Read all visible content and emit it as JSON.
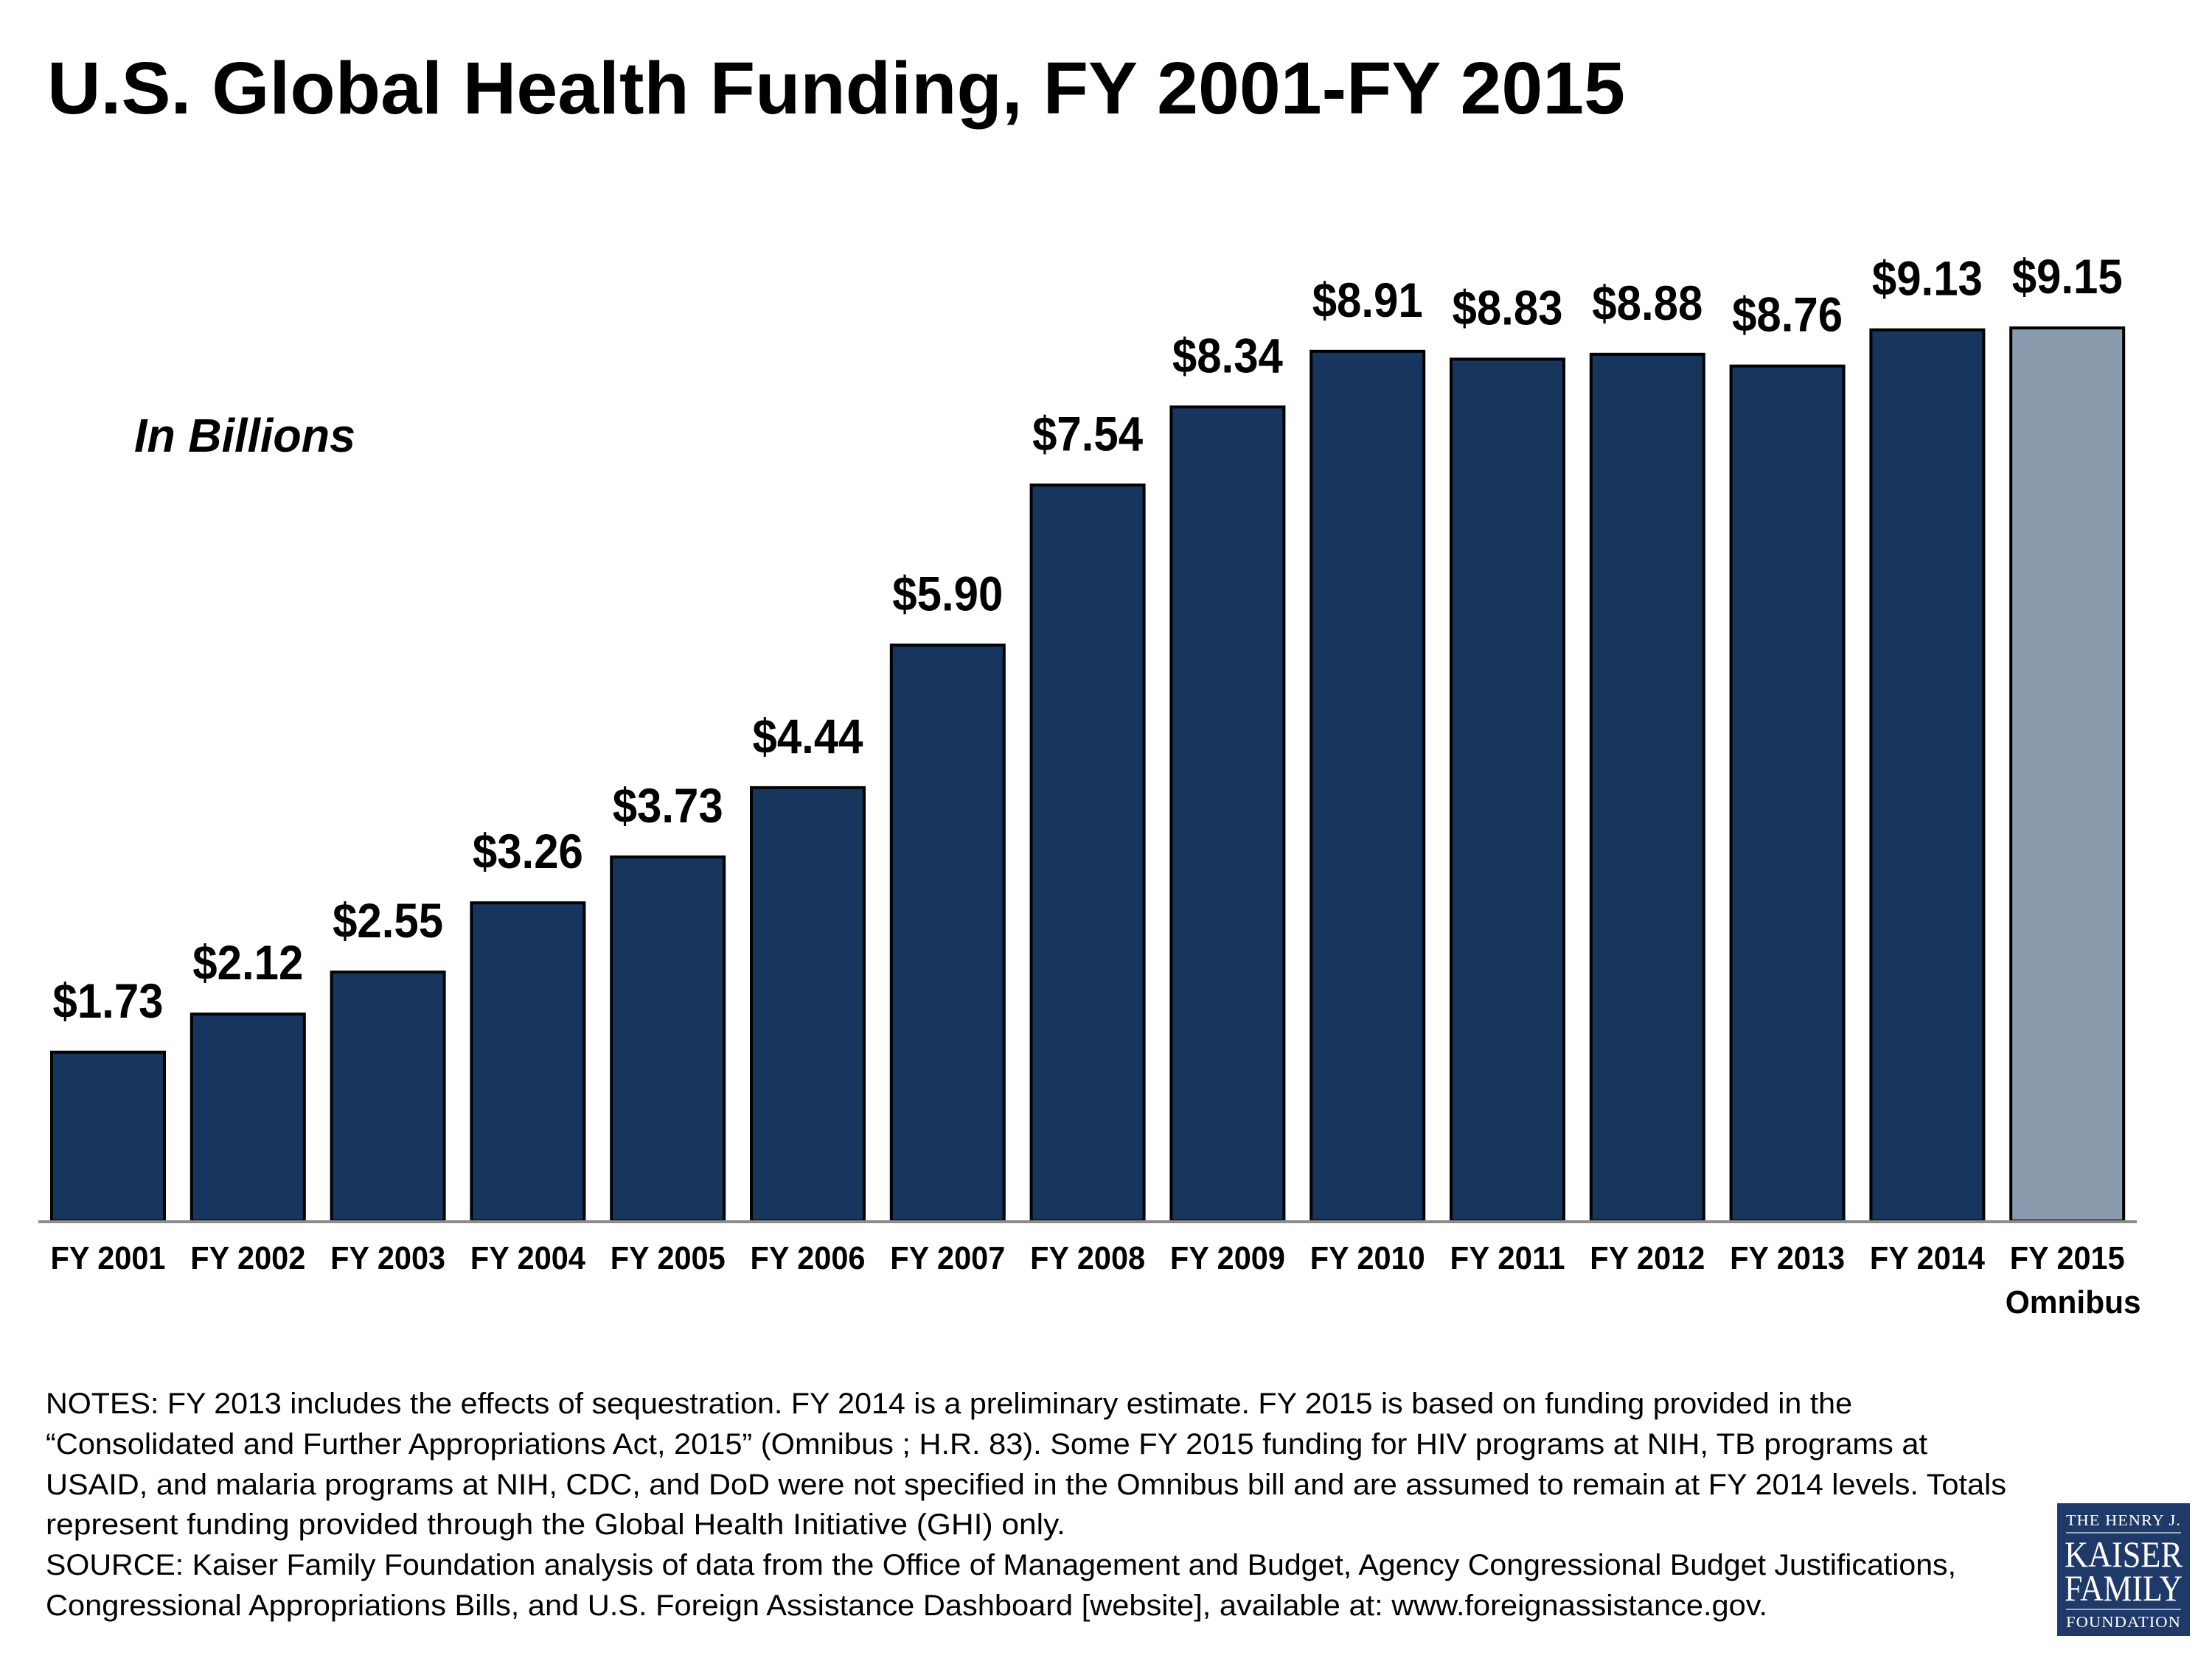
{
  "chart_data": {
    "type": "bar",
    "title": "U.S. Global Health Funding, FY 2001-FY 2015",
    "subtitle": "In Billions",
    "xlabel": "",
    "ylabel": "",
    "ylim": [
      0,
      9.15
    ],
    "grid": false,
    "legend": "none",
    "categories": [
      "FY 2001",
      "FY 2002",
      "FY 2003",
      "FY 2004",
      "FY 2005",
      "FY 2006",
      "FY 2007",
      "FY 2008",
      "FY 2009",
      "FY 2010",
      "FY 2011",
      "FY 2012",
      "FY 2013",
      "FY 2014",
      "FY 2015"
    ],
    "category_sublabels": [
      "",
      "",
      "",
      "",
      "",
      "",
      "",
      "",
      "",
      "",
      "",
      "",
      "",
      "",
      "Omnibus"
    ],
    "values": [
      1.73,
      2.12,
      2.55,
      3.26,
      3.73,
      4.44,
      5.9,
      7.54,
      8.34,
      8.91,
      8.83,
      8.88,
      8.76,
      9.13,
      9.15
    ],
    "value_labels": [
      "$1.73",
      "$2.12",
      "$2.55",
      "$3.26",
      "$3.73",
      "$4.44",
      "$5.90",
      "$7.54",
      "$8.34",
      "$8.91",
      "$8.83",
      "$8.88",
      "$8.76",
      "$9.13",
      "$9.15"
    ],
    "bar_colors": {
      "default": "#17365D",
      "highlight": "#8A9BAD",
      "highlight_category": "FY 2015",
      "outline": "#000000",
      "axis": "#8C8C8C"
    }
  },
  "notes": [
    "NOTES: FY 2013 includes the effects of sequestration. FY 2014 is a preliminary estimate. FY 2015 is based on funding provided in the",
    "“Consolidated and Further Appropriations Act, 2015” (Omnibus ; H.R. 83). Some FY 2015 funding for HIV programs at NIH, TB programs at",
    "USAID, and malaria programs at NIH, CDC, and DoD were not specified in the  Omnibus bill and are assumed to remain at FY 2014 levels.  Totals",
    "represent funding provided through the Global Health Initiative (GHI) only.",
    "SOURCE: Kaiser Family Foundation analysis of data from the Office of Management and Budget, Agency Congressional Budget Justifications,",
    "Congressional Appropriations Bills, and U.S. Foreign Assistance Dashboard [website], available at: www.foreignassistance.gov."
  ],
  "logo": {
    "line1": "THE HENRY J.",
    "line2": "KAISER",
    "line3": "FAMILY",
    "line4": "FOUNDATION",
    "color": "#1F3A68"
  }
}
